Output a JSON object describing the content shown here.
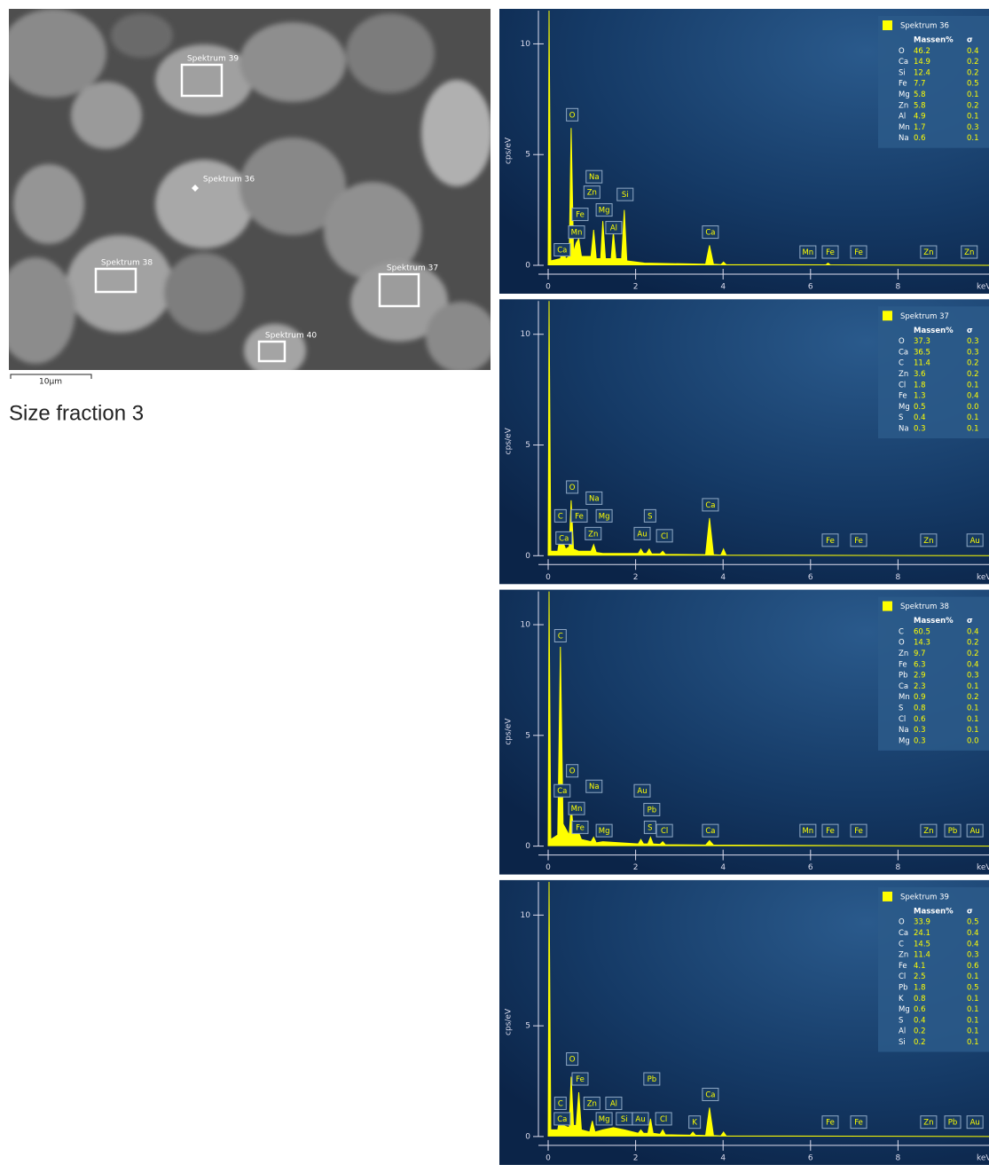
{
  "caption": "Size fraction 3",
  "image": {
    "labels": [
      "Spektrum 39",
      "Spektrum 36",
      "Spektrum 38",
      "Spektrum 37",
      "Spektrum 40"
    ],
    "scale_bar": "10µm"
  },
  "chart_data": [
    {
      "type": "area",
      "xlabel": "keV",
      "ylabel": "cps/eV",
      "x": [
        0,
        0.02,
        0.06,
        0.28,
        0.34,
        0.4,
        0.48,
        0.525,
        0.58,
        0.64,
        0.7,
        0.76,
        0.98,
        1.04,
        1.1,
        1.2,
        1.25,
        1.31,
        1.44,
        1.49,
        1.55,
        1.68,
        1.74,
        1.8,
        2.2,
        3.6,
        3.69,
        3.78,
        3.95,
        4.01,
        4.07,
        6.35,
        6.4,
        6.45,
        10.1
      ],
      "series": [
        {
          "name": "Spektrum 36",
          "color": "#ffff00",
          "values": [
            0,
            11.5,
            0.2,
            0.3,
            0.8,
            0.3,
            0.4,
            6.2,
            0.6,
            1.0,
            1.2,
            0.4,
            0.4,
            1.6,
            0.3,
            0.3,
            2.0,
            0.3,
            0.3,
            1.5,
            0.3,
            0.3,
            2.5,
            0.2,
            0.1,
            0.05,
            0.9,
            0.05,
            0.03,
            0.15,
            0.03,
            0.02,
            0.1,
            0.02,
            0
          ]
        }
      ],
      "xlim": [
        0,
        10.1
      ],
      "ylim": [
        0,
        11.5
      ],
      "xticks": [
        0,
        2,
        4,
        6,
        8
      ],
      "yticks": [
        0,
        5,
        10
      ],
      "legend": {
        "header": [
          "Massen%",
          "σ"
        ],
        "rows": [
          [
            "O",
            "46.2",
            "0.4"
          ],
          [
            "Ca",
            "14.9",
            "0.2"
          ],
          [
            "Si",
            "12.4",
            "0.2"
          ],
          [
            "Fe",
            "7.7",
            "0.5"
          ],
          [
            "Mg",
            "5.8",
            "0.1"
          ],
          [
            "Zn",
            "5.8",
            "0.2"
          ],
          [
            "Al",
            "4.9",
            "0.1"
          ],
          [
            "Mn",
            "1.7",
            "0.3"
          ],
          [
            "Na",
            "0.6",
            "0.1"
          ]
        ]
      },
      "annotations": [
        {
          "text": "O",
          "x": 0.55,
          "y": 6.8
        },
        {
          "text": "Na",
          "x": 1.05,
          "y": 4.0
        },
        {
          "text": "Zn",
          "x": 1.0,
          "y": 3.3
        },
        {
          "text": "Fe",
          "x": 0.73,
          "y": 2.3
        },
        {
          "text": "Mg",
          "x": 1.28,
          "y": 2.5
        },
        {
          "text": "Si",
          "x": 1.76,
          "y": 3.2
        },
        {
          "text": "Mn",
          "x": 0.65,
          "y": 1.5
        },
        {
          "text": "Al",
          "x": 1.5,
          "y": 1.7
        },
        {
          "text": "Ca",
          "x": 0.32,
          "y": 0.7
        },
        {
          "text": "Ca",
          "x": 3.71,
          "y": 1.5
        },
        {
          "text": "Mn",
          "x": 5.94,
          "y": 0.6
        },
        {
          "text": "Fe",
          "x": 6.45,
          "y": 0.6
        },
        {
          "text": "Fe",
          "x": 7.1,
          "y": 0.6
        },
        {
          "text": "Zn",
          "x": 8.7,
          "y": 0.6
        },
        {
          "text": "Zn",
          "x": 9.63,
          "y": 0.6
        }
      ]
    },
    {
      "type": "area",
      "xlabel": "keV",
      "ylabel": "cps/eV",
      "x": [
        0,
        0.02,
        0.06,
        0.22,
        0.28,
        0.34,
        0.4,
        0.48,
        0.525,
        0.58,
        0.7,
        0.98,
        1.04,
        1.1,
        1.25,
        2.06,
        2.12,
        2.18,
        2.25,
        2.31,
        2.37,
        2.56,
        2.62,
        2.68,
        3.6,
        3.69,
        3.78,
        3.95,
        4.01,
        4.07,
        10.1
      ],
      "series": [
        {
          "name": "Spektrum 37",
          "color": "#ffff00",
          "values": [
            0,
            11.5,
            0.2,
            0.2,
            1.0,
            0.6,
            0.3,
            0.4,
            2.5,
            0.3,
            0.2,
            0.2,
            0.5,
            0.15,
            0.1,
            0.1,
            0.3,
            0.1,
            0.1,
            0.3,
            0.08,
            0.08,
            0.2,
            0.06,
            0.05,
            1.7,
            0.05,
            0.03,
            0.3,
            0.03,
            0
          ]
        }
      ],
      "xlim": [
        0,
        10.1
      ],
      "ylim": [
        0,
        11.5
      ],
      "xticks": [
        0,
        2,
        4,
        6,
        8
      ],
      "yticks": [
        0,
        5,
        10
      ],
      "legend": {
        "header": [
          "Massen%",
          "σ"
        ],
        "rows": [
          [
            "O",
            "37.3",
            "0.3"
          ],
          [
            "Ca",
            "36.5",
            "0.3"
          ],
          [
            "C",
            "11.4",
            "0.2"
          ],
          [
            "Zn",
            "3.6",
            "0.2"
          ],
          [
            "Cl",
            "1.8",
            "0.1"
          ],
          [
            "Fe",
            "1.3",
            "0.4"
          ],
          [
            "Mg",
            "0.5",
            "0.0"
          ],
          [
            "S",
            "0.4",
            "0.1"
          ],
          [
            "Na",
            "0.3",
            "0.1"
          ]
        ]
      },
      "annotations": [
        {
          "text": "O",
          "x": 0.55,
          "y": 3.1
        },
        {
          "text": "Na",
          "x": 1.05,
          "y": 2.6
        },
        {
          "text": "C",
          "x": 0.28,
          "y": 1.8
        },
        {
          "text": "Fe",
          "x": 0.71,
          "y": 1.8
        },
        {
          "text": "Mg",
          "x": 1.28,
          "y": 1.8
        },
        {
          "text": "S",
          "x": 2.33,
          "y": 1.8
        },
        {
          "text": "Ca",
          "x": 3.71,
          "y": 2.3
        },
        {
          "text": "Ca",
          "x": 0.36,
          "y": 0.8
        },
        {
          "text": "Zn",
          "x": 1.03,
          "y": 1.0
        },
        {
          "text": "Au",
          "x": 2.15,
          "y": 1.0
        },
        {
          "text": "Cl",
          "x": 2.66,
          "y": 0.9
        },
        {
          "text": "Fe",
          "x": 6.45,
          "y": 0.7
        },
        {
          "text": "Fe",
          "x": 7.1,
          "y": 0.7
        },
        {
          "text": "Zn",
          "x": 8.7,
          "y": 0.7
        },
        {
          "text": "Au",
          "x": 9.76,
          "y": 0.7
        }
      ]
    },
    {
      "type": "area",
      "xlabel": "keV",
      "ylabel": "cps/eV",
      "x": [
        0,
        0.02,
        0.06,
        0.22,
        0.28,
        0.34,
        0.48,
        0.525,
        0.58,
        0.64,
        0.7,
        0.76,
        0.98,
        1.04,
        1.1,
        1.25,
        2.06,
        2.12,
        2.18,
        2.28,
        2.34,
        2.4,
        2.56,
        2.62,
        2.68,
        3.6,
        3.69,
        3.78,
        10.1
      ],
      "series": [
        {
          "name": "Spektrum 38",
          "color": "#ffff00",
          "values": [
            0,
            11.5,
            0.3,
            0.5,
            9.0,
            1.0,
            0.5,
            1.8,
            0.7,
            0.7,
            0.6,
            0.3,
            0.2,
            0.4,
            0.15,
            0.2,
            0.1,
            0.3,
            0.1,
            0.1,
            0.4,
            0.1,
            0.08,
            0.2,
            0.06,
            0.05,
            0.25,
            0.05,
            0
          ]
        }
      ],
      "xlim": [
        0,
        10.1
      ],
      "ylim": [
        0,
        11.5
      ],
      "xticks": [
        0,
        2,
        4,
        6,
        8
      ],
      "yticks": [
        0,
        5,
        10
      ],
      "legend": {
        "header": [
          "Massen%",
          "σ"
        ],
        "rows": [
          [
            "C",
            "60.5",
            "0.4"
          ],
          [
            "O",
            "14.3",
            "0.2"
          ],
          [
            "Zn",
            "9.7",
            "0.2"
          ],
          [
            "Fe",
            "6.3",
            "0.4"
          ],
          [
            "Pb",
            "2.9",
            "0.3"
          ],
          [
            "Ca",
            "2.3",
            "0.1"
          ],
          [
            "Mn",
            "0.9",
            "0.2"
          ],
          [
            "S",
            "0.8",
            "0.1"
          ],
          [
            "Cl",
            "0.6",
            "0.1"
          ],
          [
            "Na",
            "0.3",
            "0.1"
          ],
          [
            "Mg",
            "0.3",
            "0.0"
          ]
        ]
      },
      "annotations": [
        {
          "text": "C",
          "x": 0.28,
          "y": 9.5
        },
        {
          "text": "O",
          "x": 0.55,
          "y": 3.4
        },
        {
          "text": "Ca",
          "x": 0.32,
          "y": 2.5
        },
        {
          "text": "Na",
          "x": 1.05,
          "y": 2.7
        },
        {
          "text": "Au",
          "x": 2.15,
          "y": 2.5
        },
        {
          "text": "Mn",
          "x": 0.65,
          "y": 1.7
        },
        {
          "text": "Pb",
          "x": 2.37,
          "y": 1.65
        },
        {
          "text": "Fe",
          "x": 0.73,
          "y": 0.85
        },
        {
          "text": "Mg",
          "x": 1.28,
          "y": 0.7
        },
        {
          "text": "S",
          "x": 2.33,
          "y": 0.85
        },
        {
          "text": "Cl",
          "x": 2.66,
          "y": 0.7
        },
        {
          "text": "Ca",
          "x": 3.71,
          "y": 0.7
        },
        {
          "text": "Mn",
          "x": 5.94,
          "y": 0.7
        },
        {
          "text": "Fe",
          "x": 6.45,
          "y": 0.7
        },
        {
          "text": "Fe",
          "x": 7.1,
          "y": 0.7
        },
        {
          "text": "Zn",
          "x": 8.7,
          "y": 0.7
        },
        {
          "text": "Pb",
          "x": 9.25,
          "y": 0.7
        },
        {
          "text": "Au",
          "x": 9.76,
          "y": 0.7
        }
      ]
    },
    {
      "type": "area",
      "xlabel": "keV",
      "ylabel": "cps/eV",
      "x": [
        0,
        0.02,
        0.06,
        0.22,
        0.28,
        0.34,
        0.48,
        0.525,
        0.58,
        0.64,
        0.7,
        0.76,
        0.95,
        1.01,
        1.07,
        1.25,
        1.49,
        1.74,
        2.06,
        2.12,
        2.18,
        2.28,
        2.34,
        2.4,
        2.56,
        2.62,
        2.68,
        3.25,
        3.31,
        3.37,
        3.6,
        3.69,
        3.78,
        3.95,
        4.01,
        4.07,
        10.1
      ],
      "series": [
        {
          "name": "Spektrum 39",
          "color": "#ffff00",
          "values": [
            0,
            11.5,
            0.3,
            0.3,
            1.0,
            0.5,
            0.4,
            2.7,
            0.5,
            0.5,
            2.0,
            0.3,
            0.2,
            0.7,
            0.2,
            0.3,
            0.4,
            0.3,
            0.15,
            0.3,
            0.15,
            0.15,
            0.8,
            0.15,
            0.1,
            0.3,
            0.08,
            0.06,
            0.2,
            0.06,
            0.05,
            1.3,
            0.05,
            0.03,
            0.2,
            0.03,
            0
          ]
        }
      ],
      "xlim": [
        0,
        10.1
      ],
      "ylim": [
        0,
        11.5
      ],
      "xticks": [
        0,
        2,
        4,
        6,
        8
      ],
      "yticks": [
        0,
        5,
        10
      ],
      "legend": {
        "header": [
          "Massen%",
          "σ"
        ],
        "rows": [
          [
            "O",
            "33.9",
            "0.5"
          ],
          [
            "Ca",
            "24.1",
            "0.4"
          ],
          [
            "C",
            "14.5",
            "0.4"
          ],
          [
            "Zn",
            "11.4",
            "0.3"
          ],
          [
            "Fe",
            "4.1",
            "0.6"
          ],
          [
            "Cl",
            "2.5",
            "0.1"
          ],
          [
            "Pb",
            "1.8",
            "0.5"
          ],
          [
            "K",
            "0.8",
            "0.1"
          ],
          [
            "Mg",
            "0.6",
            "0.1"
          ],
          [
            "S",
            "0.4",
            "0.1"
          ],
          [
            "Al",
            "0.2",
            "0.1"
          ],
          [
            "Si",
            "0.2",
            "0.1"
          ]
        ]
      },
      "annotations": [
        {
          "text": "O",
          "x": 0.55,
          "y": 3.5
        },
        {
          "text": "Fe",
          "x": 0.73,
          "y": 2.6
        },
        {
          "text": "Pb",
          "x": 2.37,
          "y": 2.6
        },
        {
          "text": "C",
          "x": 0.28,
          "y": 1.5
        },
        {
          "text": "Zn",
          "x": 1.0,
          "y": 1.5
        },
        {
          "text": "Al",
          "x": 1.5,
          "y": 1.5
        },
        {
          "text": "Ca",
          "x": 3.71,
          "y": 1.9
        },
        {
          "text": "Ca",
          "x": 0.32,
          "y": 0.8
        },
        {
          "text": "Mg",
          "x": 1.28,
          "y": 0.8
        },
        {
          "text": "Si",
          "x": 1.74,
          "y": 0.8
        },
        {
          "text": "Au",
          "x": 2.11,
          "y": 0.8
        },
        {
          "text": "Cl",
          "x": 2.64,
          "y": 0.8
        },
        {
          "text": "K",
          "x": 3.35,
          "y": 0.65
        },
        {
          "text": "Fe",
          "x": 6.45,
          "y": 0.65
        },
        {
          "text": "Fe",
          "x": 7.1,
          "y": 0.65
        },
        {
          "text": "Zn",
          "x": 8.7,
          "y": 0.65
        },
        {
          "text": "Pb",
          "x": 9.25,
          "y": 0.65
        },
        {
          "text": "Au",
          "x": 9.76,
          "y": 0.65
        }
      ]
    }
  ]
}
